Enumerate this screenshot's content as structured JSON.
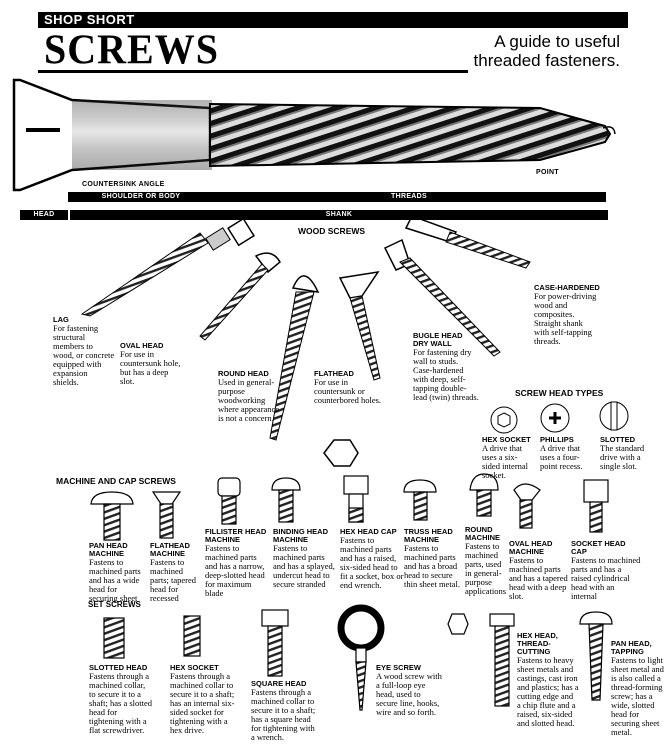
{
  "header": {
    "banner": "SHOP SHORT",
    "title": "SCREWS",
    "subtitle": "A guide to useful threaded fasteners."
  },
  "anatomy": {
    "countersink": "COUNTERSINK ANGLE",
    "shoulder": "SHOULDER OR BODY",
    "threads": "THREADS",
    "point": "POINT",
    "head": "HEAD",
    "shank": "SHANK"
  },
  "sections": {
    "wood": "WOOD SCREWS",
    "head_types": "SCREW HEAD TYPES",
    "machine": "MACHINE AND CAP SCREWS",
    "set": "SET SCREWS"
  },
  "wood_screws": [
    {
      "name": "LAG",
      "desc": "For fastening structural members to wood, or concrete equipped with expansion shields."
    },
    {
      "name": "OVAL HEAD",
      "desc": "For use in countersunk hole, but has a deep slot."
    },
    {
      "name": "ROUND HEAD",
      "desc": "Used in general-purpose woodworking where appearance is not a concern."
    },
    {
      "name": "FLATHEAD",
      "desc": "For use in countersunk or counterbored holes."
    },
    {
      "name": "BUGLE HEAD DRY WALL",
      "desc": "For fastening dry wall to studs. Case-hardened with deep, self-tapping double-lead (twin) threads."
    },
    {
      "name": "CASE-HARDENED",
      "desc": "For power-driving wood and composites. Straight shank with self-tapping threads."
    }
  ],
  "head_types": [
    {
      "name": "HEX SOCKET",
      "desc": "A drive that uses a six-sided internal socket."
    },
    {
      "name": "PHILLIPS",
      "desc": "A drive that uses a four-point recess."
    },
    {
      "name": "SLOTTED",
      "desc": "The standard drive with a single slot."
    }
  ],
  "machine_screws": [
    {
      "name": "PAN HEAD MACHINE",
      "desc": "Fastens to machined parts and has a wide head for securing sheet metal."
    },
    {
      "name": "FLATHEAD MACHINE",
      "desc": "Fastens to machined parts; tapered head for recessed mounting."
    },
    {
      "name": "FILLISTER HEAD MACHINE",
      "desc": "Fastens to machined parts and has a narrow, deep-slotted head for maximum blade"
    },
    {
      "name": "BINDING HEAD MACHINE",
      "desc": "Fastens to machined parts and has a splayed, undercut head to secure stranded"
    },
    {
      "name": "HEX HEAD CAP",
      "desc": "Fastens to machined parts and has a raised, six-sided head to fit a socket, box or end wrench."
    },
    {
      "name": "TRUSS HEAD MACHINE",
      "desc": "Fastens to machined parts and has a broad head to secure thin sheet metal."
    },
    {
      "name": "ROUND MACHINE",
      "desc": "Fastens to machined parts, used in general-purpose applications"
    },
    {
      "name": "OVAL HEAD MACHINE",
      "desc": "Fastens to machined parts and has a tapered head with a deep slot."
    },
    {
      "name": "SOCKET HEAD CAP",
      "desc": "Fastens to machined parts and has a raised cylindrical head with an internal"
    }
  ],
  "set_screws": [
    {
      "name": "SLOTTED HEAD",
      "desc": "Fastens through a machined collar, to secure it to a shaft; has a slotted head for tightening with a flat screwdriver."
    },
    {
      "name": "HEX SOCKET",
      "desc": "Fastens through a machined collar to secure it to a shaft; has an internal six-sided socket for tightening with a hex drive."
    },
    {
      "name": "SQUARE HEAD",
      "desc": "Fastens through a machined collar to secure it to a shaft; has a square head for tightening with a wrench."
    },
    {
      "name": "EYE SCREW",
      "desc": "A wood screw with a full-loop eye head, used to secure line, hooks, wire and so forth."
    },
    {
      "name": "HEX HEAD, THREAD-CUTTING",
      "desc": "Fastens to heavy sheet metals and castings, cast iron and plastics; has a cutting edge and a chip flute and a raised, six-sided and slotted head."
    },
    {
      "name": "PAN HEAD, TAPPING",
      "desc": "Fastens to light sheet metal and is also called a thread-forming screw; has a wide, slotted head for securing sheet metal."
    }
  ]
}
